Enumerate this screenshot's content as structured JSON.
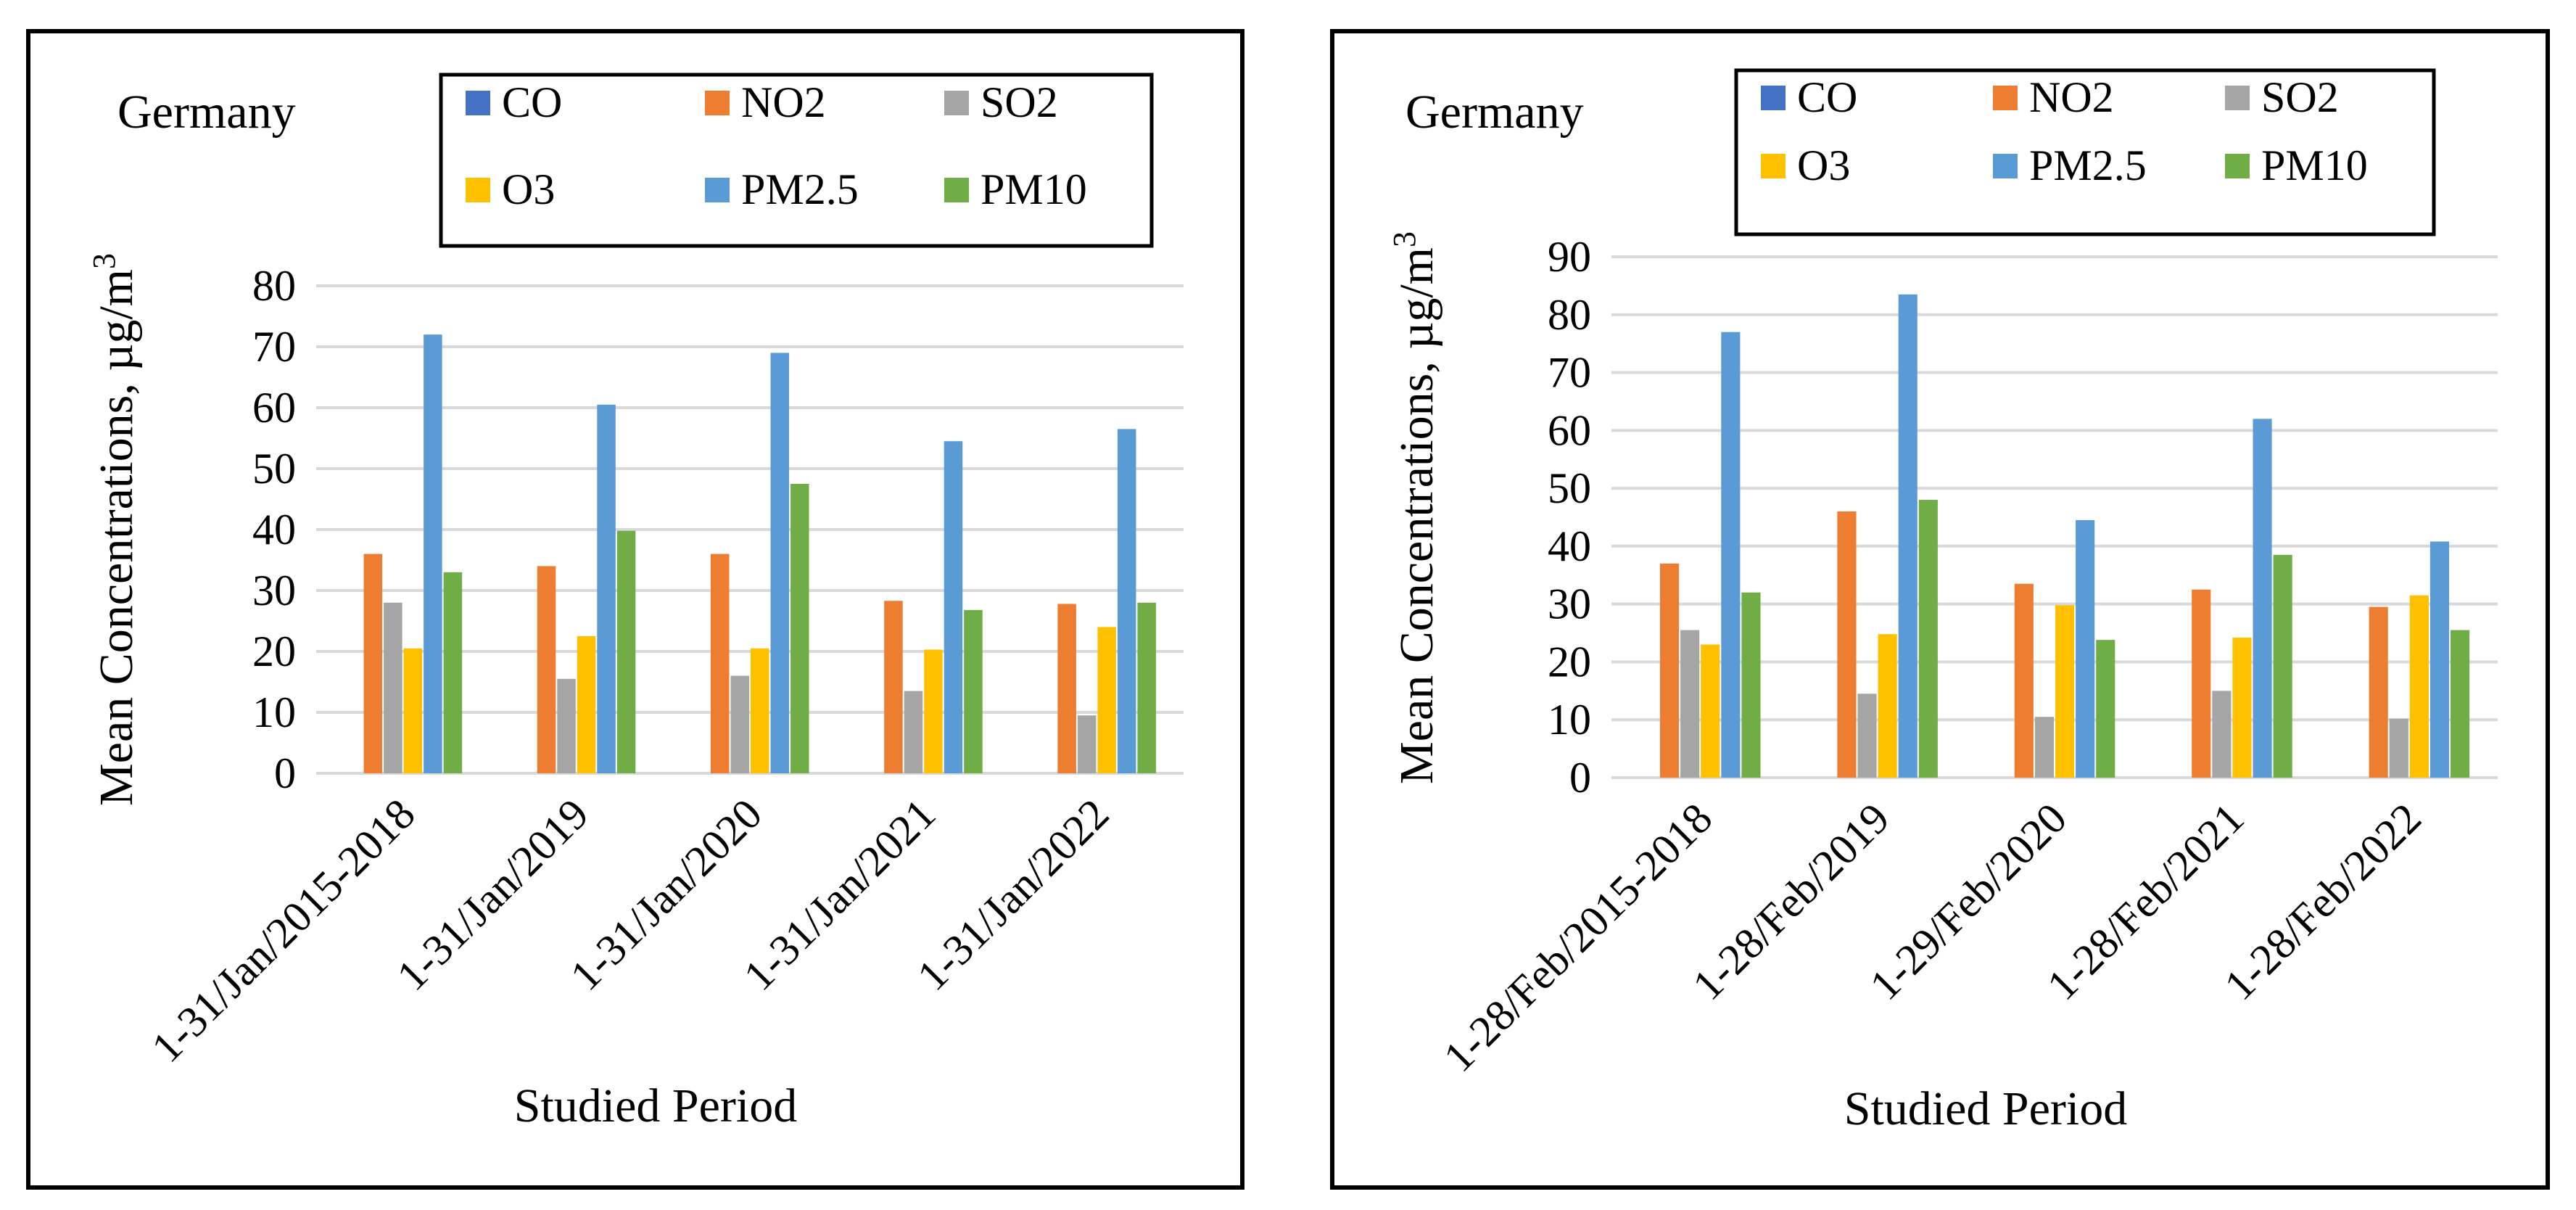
{
  "chart_data": [
    {
      "type": "bar",
      "title": "Germany",
      "xlabel": "Studied Period",
      "ylabel": "Mean Concentrations, µg/m",
      "ylabel_superscript": "3",
      "ylim": [
        0,
        80
      ],
      "yticks": [
        "0",
        "10",
        "20",
        "30",
        "40",
        "50",
        "60",
        "70",
        "80"
      ],
      "grid": true,
      "legend_position": "top-right",
      "categories": [
        "1-31/Jan/2015-2018",
        "1-31/Jan/2019",
        "1-31/Jan/2020",
        "1-31/Jan/2021",
        "1-31/Jan/2022"
      ],
      "series": [
        {
          "name": "CO",
          "color": "#4472C4",
          "values": [
            0,
            0,
            0,
            0,
            0
          ]
        },
        {
          "name": "NO2",
          "color": "#ED7D31",
          "values": [
            36,
            34,
            36,
            28.3,
            27.8
          ]
        },
        {
          "name": "SO2",
          "color": "#A5A5A5",
          "values": [
            28,
            15.5,
            16,
            13.5,
            9.5
          ]
        },
        {
          "name": "O3",
          "color": "#FFC000",
          "values": [
            20.5,
            22.5,
            20.5,
            20.3,
            24
          ]
        },
        {
          "name": "PM2.5",
          "color": "#5B9BD5",
          "values": [
            72,
            60.5,
            69,
            54.5,
            56.5
          ]
        },
        {
          "name": "PM10",
          "color": "#70AD47",
          "values": [
            33,
            39.8,
            47.5,
            26.8,
            28
          ]
        }
      ]
    },
    {
      "type": "bar",
      "title": "Germany",
      "xlabel": "Studied Period",
      "ylabel": "Mean Concentrations, µg/m",
      "ylabel_superscript": "3",
      "ylim": [
        0,
        90
      ],
      "yticks": [
        "0",
        "10",
        "20",
        "30",
        "40",
        "50",
        "60",
        "70",
        "80",
        "90"
      ],
      "grid": true,
      "legend_position": "top-right",
      "categories": [
        "1-28/Feb/2015-2018",
        "1-28/Feb/2019",
        "1-29/Feb/2020",
        "1-28/Feb/2021",
        "1-28/Feb/2022"
      ],
      "series": [
        {
          "name": "CO",
          "color": "#4472C4",
          "values": [
            0,
            0,
            0,
            0,
            0
          ]
        },
        {
          "name": "NO2",
          "color": "#ED7D31",
          "values": [
            37,
            46,
            33.5,
            32.5,
            29.5
          ]
        },
        {
          "name": "SO2",
          "color": "#A5A5A5",
          "values": [
            25.5,
            14.5,
            10.5,
            15,
            10.2
          ]
        },
        {
          "name": "O3",
          "color": "#FFC000",
          "values": [
            23,
            24.8,
            29.8,
            24.2,
            31.5
          ]
        },
        {
          "name": "PM2.5",
          "color": "#5B9BD5",
          "values": [
            77,
            83.5,
            44.5,
            62,
            40.8
          ]
        },
        {
          "name": "PM10",
          "color": "#70AD47",
          "values": [
            32,
            48,
            23.8,
            38.5,
            25.5
          ]
        }
      ]
    }
  ]
}
